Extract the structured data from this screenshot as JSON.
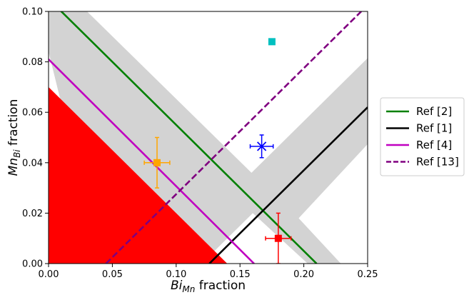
{
  "chart_data": {
    "type": "scatter",
    "title": "",
    "xlabel": {
      "base": "Bi",
      "sub": "Mn",
      "rest": " fraction"
    },
    "ylabel": {
      "base": "Mn",
      "sub": "Bi",
      "rest": " fraction"
    },
    "xlim": [
      0.0,
      0.25
    ],
    "ylim": [
      0.0,
      0.1
    ],
    "xticks": [
      "0.00",
      "0.05",
      "0.10",
      "0.15",
      "0.20",
      "0.25"
    ],
    "yticks": [
      "0.00",
      "0.02",
      "0.04",
      "0.06",
      "0.08",
      "0.10"
    ],
    "grid": false,
    "legend_position": "right",
    "colors": {
      "red_region": "#ff0000",
      "gray_band": "#d3d3d3",
      "ref2": "#008000",
      "ref1": "#000000",
      "ref4": "#c000c0",
      "ref13": "#800080",
      "orange": "#ffa500",
      "blue": "#0000ff",
      "red": "#ff0000",
      "cyan": "#00c0c0"
    },
    "red_region": [
      [
        0.0,
        0.0
      ],
      [
        0.0,
        0.07
      ],
      [
        0.14,
        0.0
      ]
    ],
    "gray_bands": [
      {
        "polygon": [
          [
            0.0,
            0.084
          ],
          [
            0.0,
            0.115
          ],
          [
            0.159,
            0.036
          ],
          [
            0.253,
            0.083
          ],
          [
            0.253,
            0.049
          ],
          [
            0.196,
            0.018
          ],
          [
            0.229,
            0.0
          ],
          [
            0.203,
            0.0
          ],
          [
            0.16,
            0.02
          ],
          [
            0.12,
            0.0
          ],
          [
            0.041,
            0.0
          ]
        ]
      }
    ],
    "series": [
      {
        "name": "Ref [2]",
        "color": "#008000",
        "dash": "solid",
        "points": [
          [
            0.0,
            0.105
          ],
          [
            0.21,
            0.0
          ]
        ]
      },
      {
        "name": "Ref [1]",
        "color": "#000000",
        "dash": "solid",
        "points": [
          [
            0.126,
            0.0
          ],
          [
            0.25,
            0.062
          ]
        ]
      },
      {
        "name": "Ref [4]",
        "color": "#c000c0",
        "dash": "solid",
        "points": [
          [
            0.0,
            0.081
          ],
          [
            0.161,
            0.0
          ]
        ]
      },
      {
        "name": "Ref [13]",
        "color": "#800080",
        "dash": "dashed",
        "points": [
          [
            0.045,
            0.0
          ],
          [
            0.245,
            0.1
          ]
        ]
      }
    ],
    "points": [
      {
        "label": "orange-square",
        "x": 0.085,
        "y": 0.04,
        "xerr": 0.01,
        "yerr": 0.01,
        "color": "#ffa500",
        "marker": "square"
      },
      {
        "label": "blue-x",
        "x": 0.167,
        "y": 0.0465,
        "xerr": 0.009,
        "yerr": 0.0045,
        "color": "#0000ff",
        "marker": "x"
      },
      {
        "label": "red-square",
        "x": 0.18,
        "y": 0.01,
        "xerr": 0.01,
        "yerr": 0.01,
        "color": "#ff0000",
        "marker": "square"
      },
      {
        "label": "cyan-square",
        "x": 0.175,
        "y": 0.088,
        "xerr": 0,
        "yerr": 0,
        "color": "#00c0c0",
        "marker": "square"
      }
    ]
  }
}
